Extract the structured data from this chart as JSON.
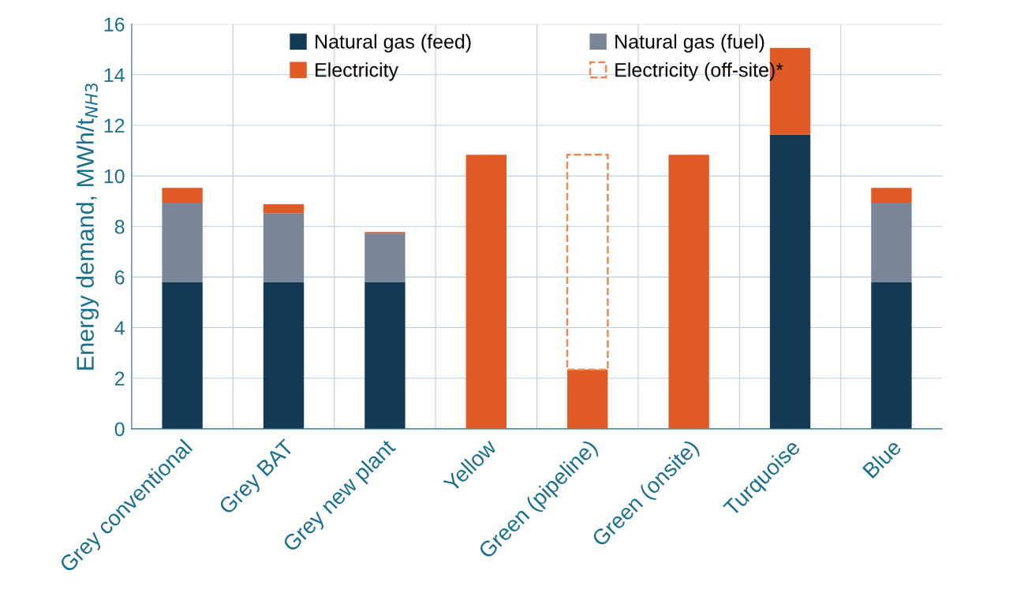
{
  "chart_data": {
    "type": "bar",
    "stacked": true,
    "ylabel": "Energy demand, MWh/t$_{NH3}$",
    "categories": [
      "Grey conventional",
      "Grey BAT",
      "Grey new plant",
      "Yellow",
      "Green (pipeline)",
      "Green (onsite)",
      "Turquoise",
      "Blue"
    ],
    "series": [
      {
        "name": "Natural gas (feed)",
        "color": "#133a55",
        "values": [
          5.81,
          5.81,
          5.81,
          0,
          0,
          0,
          11.63,
          5.81
        ]
      },
      {
        "name": "Natural gas (fuel)",
        "color": "#7a8598",
        "values": [
          3.13,
          2.72,
          1.91,
          0,
          0,
          0,
          0,
          3.13
        ]
      },
      {
        "name": "Electricity",
        "color": "#e05a26",
        "values": [
          0.59,
          0.35,
          0.06,
          10.84,
          2.34,
          10.84,
          3.43,
          0.59
        ]
      },
      {
        "name": "Electricity (off-site)*",
        "color": "#f08a55",
        "line_style": "dashed",
        "values": [
          null,
          null,
          null,
          null,
          8.5,
          null,
          null,
          null
        ]
      }
    ],
    "ylim": [
      0,
      16
    ],
    "yticks": [
      0,
      2,
      4,
      6,
      8,
      10,
      12,
      14,
      16
    ],
    "grid": true,
    "legend": "top"
  }
}
